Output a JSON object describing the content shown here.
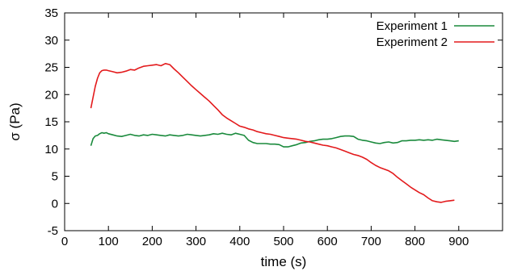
{
  "chart_data": {
    "type": "line",
    "xlabel": "time (s)",
    "ylabel": "σ (Pa)",
    "xlim": [
      0,
      1000
    ],
    "ylim": [
      -5,
      35
    ],
    "x_ticks": [
      0,
      100,
      200,
      300,
      400,
      500,
      600,
      700,
      800,
      900
    ],
    "y_ticks": [
      -5,
      0,
      5,
      10,
      15,
      20,
      25,
      30,
      35
    ],
    "grid": false,
    "legend_position": "top-right",
    "series": [
      {
        "name": "Experiment 1",
        "color": "#1a8a3c",
        "x": [
          60,
          65,
          70,
          75,
          80,
          85,
          90,
          95,
          100,
          110,
          120,
          130,
          140,
          150,
          160,
          170,
          180,
          190,
          200,
          210,
          220,
          230,
          240,
          250,
          260,
          270,
          280,
          290,
          300,
          310,
          320,
          330,
          340,
          350,
          360,
          370,
          380,
          390,
          400,
          410,
          420,
          430,
          440,
          450,
          460,
          470,
          480,
          490,
          500,
          510,
          520,
          530,
          540,
          550,
          560,
          570,
          580,
          590,
          600,
          610,
          620,
          630,
          640,
          650,
          660,
          670,
          680,
          690,
          700,
          710,
          720,
          730,
          740,
          750,
          760,
          770,
          780,
          790,
          800,
          810,
          820,
          830,
          840,
          850,
          860,
          870,
          880,
          890,
          900
        ],
        "values": [
          10.6,
          11.9,
          12.4,
          12.5,
          12.8,
          13.0,
          12.9,
          13.0,
          12.8,
          12.6,
          12.4,
          12.3,
          12.5,
          12.7,
          12.5,
          12.4,
          12.6,
          12.5,
          12.7,
          12.6,
          12.5,
          12.4,
          12.6,
          12.5,
          12.4,
          12.5,
          12.7,
          12.6,
          12.5,
          12.4,
          12.5,
          12.6,
          12.8,
          12.7,
          12.9,
          12.7,
          12.6,
          12.9,
          12.7,
          12.5,
          11.6,
          11.2,
          11.0,
          11.0,
          11.0,
          10.9,
          10.9,
          10.8,
          10.4,
          10.4,
          10.6,
          10.8,
          11.1,
          11.2,
          11.4,
          11.5,
          11.7,
          11.8,
          11.8,
          11.9,
          12.1,
          12.3,
          12.4,
          12.4,
          12.3,
          11.8,
          11.6,
          11.5,
          11.3,
          11.1,
          11.0,
          11.2,
          11.3,
          11.1,
          11.2,
          11.5,
          11.5,
          11.6,
          11.6,
          11.7,
          11.6,
          11.7,
          11.6,
          11.8,
          11.7,
          11.6,
          11.5,
          11.4,
          11.5
        ]
      },
      {
        "name": "Experiment 2",
        "color": "#e31a1c",
        "x": [
          60,
          65,
          70,
          75,
          80,
          85,
          90,
          95,
          100,
          110,
          120,
          130,
          140,
          150,
          160,
          170,
          180,
          190,
          200,
          210,
          220,
          230,
          240,
          250,
          260,
          270,
          280,
          290,
          300,
          310,
          320,
          330,
          340,
          350,
          360,
          370,
          380,
          390,
          400,
          410,
          420,
          430,
          440,
          450,
          460,
          470,
          480,
          490,
          500,
          510,
          520,
          530,
          540,
          550,
          560,
          570,
          580,
          590,
          600,
          610,
          620,
          630,
          640,
          650,
          660,
          670,
          680,
          690,
          700,
          710,
          720,
          730,
          740,
          750,
          760,
          770,
          780,
          790,
          800,
          810,
          820,
          830,
          840,
          850,
          860,
          870,
          880,
          890
        ],
        "values": [
          17.5,
          19.5,
          21.5,
          23.0,
          24.0,
          24.4,
          24.5,
          24.5,
          24.4,
          24.2,
          24.0,
          24.1,
          24.3,
          24.6,
          24.5,
          24.9,
          25.2,
          25.3,
          25.4,
          25.5,
          25.3,
          25.7,
          25.5,
          24.7,
          24.0,
          23.2,
          22.4,
          21.6,
          20.9,
          20.2,
          19.5,
          18.8,
          18.0,
          17.2,
          16.3,
          15.7,
          15.2,
          14.7,
          14.2,
          14.0,
          13.7,
          13.5,
          13.2,
          13.0,
          12.8,
          12.7,
          12.5,
          12.3,
          12.1,
          12.0,
          11.9,
          11.8,
          11.6,
          11.4,
          11.3,
          11.1,
          10.9,
          10.7,
          10.6,
          10.4,
          10.2,
          9.9,
          9.6,
          9.3,
          9.0,
          8.8,
          8.5,
          8.1,
          7.5,
          7.0,
          6.6,
          6.3,
          6.0,
          5.5,
          4.8,
          4.2,
          3.6,
          3.0,
          2.5,
          2.0,
          1.6,
          1.0,
          0.5,
          0.3,
          0.2,
          0.4,
          0.5,
          0.6
        ]
      }
    ]
  }
}
